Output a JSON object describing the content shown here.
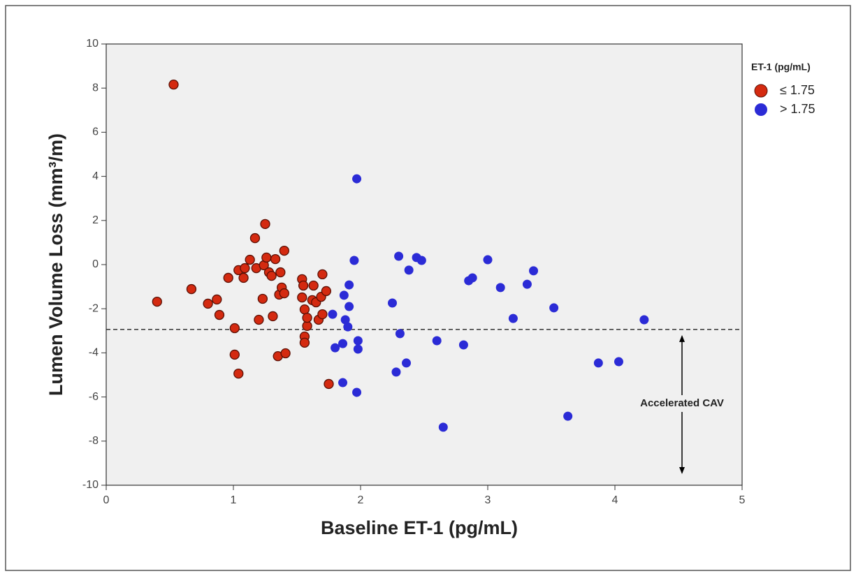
{
  "chart_data": {
    "type": "scatter",
    "x_label": "Baseline ET-1 (pg/mL)",
    "y_label": "Lumen Volume Loss (mm³/m)",
    "legend_title": "ET-1 (pg/mL)",
    "legend_position": "right",
    "background": "#f0f0f0",
    "xlim": [
      0,
      5
    ],
    "xticks": [
      0,
      1,
      2,
      3,
      4,
      5
    ],
    "ylim": [
      -10,
      10
    ],
    "yticks": [
      -10,
      -8,
      -6,
      -4,
      -2,
      0,
      2,
      4,
      6,
      8,
      10
    ],
    "reference_line": {
      "y": -2.94,
      "annotation": "Accelerated CAV"
    },
    "series": [
      {
        "name": "≤ 1.75",
        "color": "#d42a10",
        "x": [
          0.4,
          0.53,
          0.67,
          0.8,
          0.87,
          0.89,
          0.96,
          1.01,
          1.01,
          1.04,
          1.04,
          1.08,
          1.09,
          1.13,
          1.18,
          1.17,
          1.2,
          1.23,
          1.24,
          1.25,
          1.26,
          1.28,
          1.3,
          1.31,
          1.33,
          1.35,
          1.36,
          1.37,
          1.38,
          1.4,
          1.4,
          1.41,
          1.54,
          1.54,
          1.55,
          1.56,
          1.56,
          1.56,
          1.58,
          1.58,
          1.62,
          1.63,
          1.65,
          1.67,
          1.69,
          1.7,
          1.7,
          1.73,
          1.75
        ],
        "y": [
          -1.68,
          8.16,
          -1.11,
          -1.77,
          -1.58,
          -2.28,
          -0.6,
          -2.88,
          -4.08,
          -4.94,
          -0.25,
          -0.6,
          -0.16,
          0.22,
          -0.16,
          1.2,
          -2.5,
          -1.55,
          -0.03,
          1.84,
          0.32,
          -0.35,
          -0.51,
          -2.34,
          0.25,
          -4.15,
          -1.36,
          -0.35,
          -1.04,
          -1.3,
          0.63,
          -4.02,
          -0.66,
          -1.49,
          -0.95,
          -2.03,
          -3.26,
          -3.54,
          -2.78,
          -2.41,
          -1.61,
          -0.95,
          -1.71,
          -2.5,
          -1.46,
          -0.44,
          -2.25,
          -1.2,
          -5.41
        ]
      },
      {
        "name": "> 1.75",
        "color": "#2b2bd6",
        "x": [
          1.78,
          1.8,
          1.86,
          1.86,
          1.87,
          1.88,
          1.9,
          1.91,
          1.91,
          1.95,
          1.97,
          1.97,
          1.98,
          1.98,
          2.25,
          2.28,
          2.3,
          2.31,
          2.36,
          2.38,
          2.44,
          2.48,
          2.6,
          2.65,
          2.81,
          2.85,
          2.88,
          3.0,
          3.1,
          3.2,
          3.31,
          3.36,
          3.52,
          3.63,
          3.87,
          4.03,
          4.23
        ],
        "y": [
          -2.25,
          -3.77,
          -5.35,
          -3.58,
          -1.39,
          -2.5,
          -2.82,
          -0.92,
          -1.9,
          0.19,
          -5.79,
          3.89,
          -3.45,
          -3.83,
          -1.74,
          -4.87,
          0.38,
          -3.13,
          -4.46,
          -0.25,
          0.32,
          0.19,
          -3.45,
          -7.37,
          -3.64,
          -0.73,
          -0.6,
          0.22,
          -1.04,
          -2.44,
          -0.89,
          -0.28,
          -1.96,
          -6.87,
          -4.46,
          -4.4,
          -2.5
        ]
      }
    ]
  }
}
